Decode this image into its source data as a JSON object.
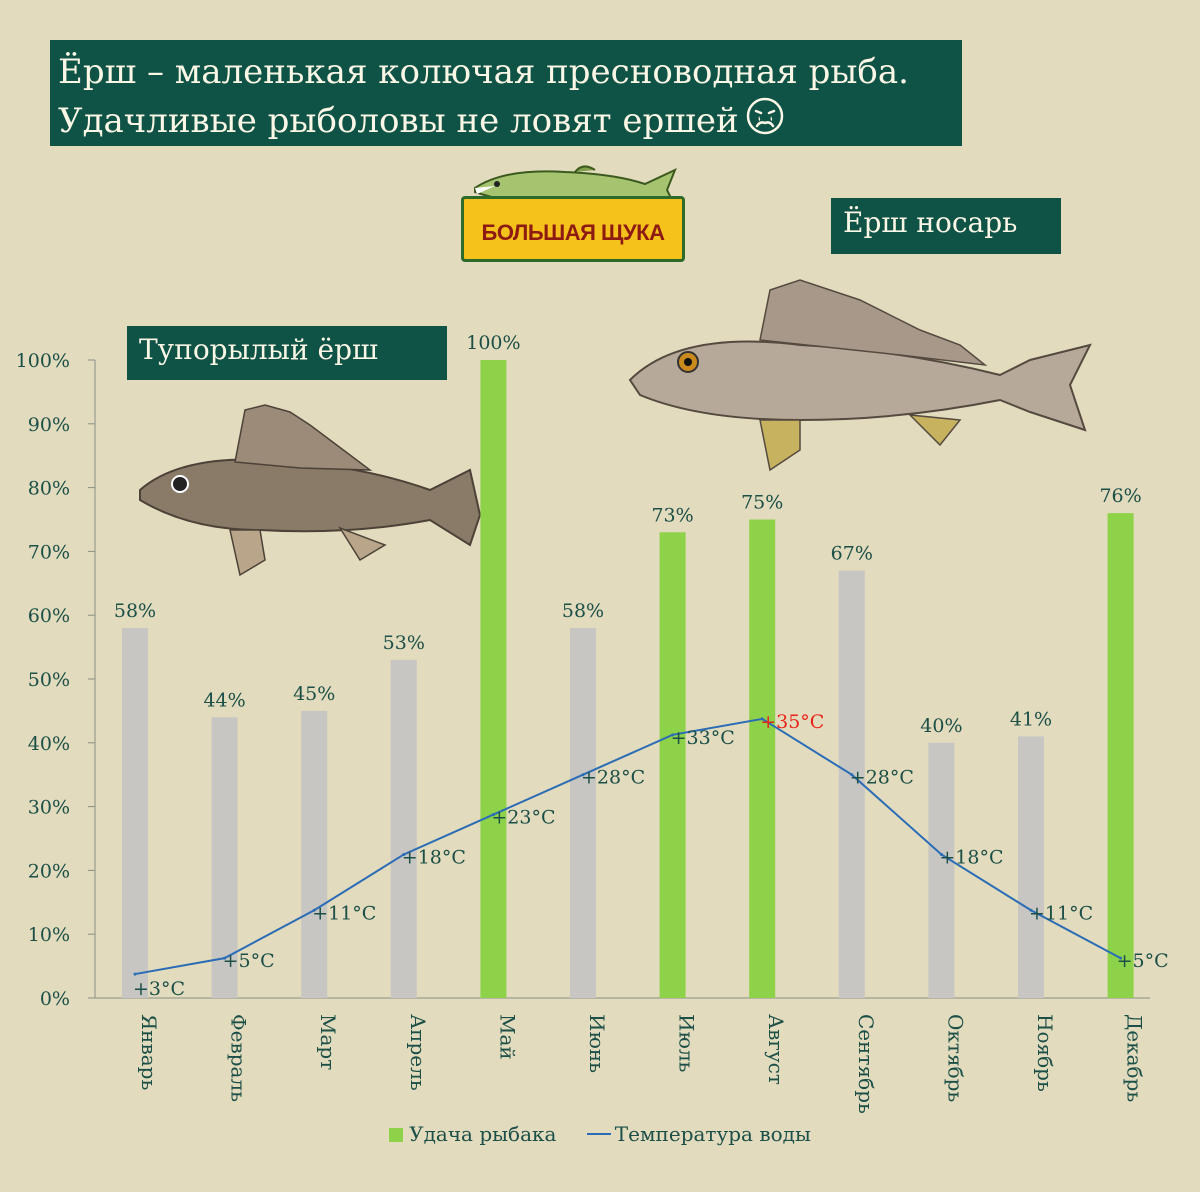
{
  "header": {
    "title_line1": "Ёрш – маленькая колючая пресноводная рыба.",
    "title_line2": "Удачливые рыболовы не ловят ершей",
    "title_icon": "sad-face-icon"
  },
  "labels": {
    "nosar": "Ёрш носарь",
    "tuporyly": "Тупорылый ёрш"
  },
  "logo": {
    "text": "БОЛЬШАЯ ЩУКА",
    "icon": "pike-fish-icon"
  },
  "illustrations": {
    "left": "ruffe-fish-icon",
    "right": "ruffe-fish-icon"
  },
  "colors": {
    "background": "#e2dbbd",
    "header_bg": "#0f5246",
    "bar_green": "#8ed24a",
    "bar_grey": "#c7c6c2",
    "temp_line": "#2a6cb6",
    "text_dark": "#1b4f47",
    "peak_label": "#e8241a"
  },
  "chart_data": {
    "type": "bar",
    "categories": [
      "Январь",
      "Февраль",
      "Март",
      "Апрель",
      "Май",
      "Июнь",
      "Июль",
      "Август",
      "Сентябрь",
      "Октябрь",
      "Ноябрь",
      "Декабрь"
    ],
    "ylim": [
      0,
      100
    ],
    "yticks": [
      0,
      10,
      20,
      30,
      40,
      50,
      60,
      70,
      80,
      90,
      100
    ],
    "ytick_labels": [
      "0%",
      "10%",
      "20%",
      "30%",
      "40%",
      "50%",
      "60%",
      "70%",
      "80%",
      "90%",
      "100%"
    ],
    "series": [
      {
        "name": "Удача рыбака",
        "kind": "bar",
        "values": [
          58,
          44,
          45,
          53,
          100,
          58,
          73,
          75,
          67,
          40,
          41,
          76
        ],
        "labels": [
          "58%",
          "44%",
          "45%",
          "53%",
          "100%",
          "58%",
          "73%",
          "75%",
          "67%",
          "40%",
          "41%",
          "76%"
        ],
        "highlight": [
          false,
          false,
          false,
          false,
          true,
          false,
          true,
          true,
          false,
          false,
          false,
          true
        ]
      },
      {
        "name": "Температура воды",
        "kind": "line",
        "values": [
          3,
          5,
          11,
          18,
          23,
          28,
          33,
          35,
          28,
          18,
          11,
          5
        ],
        "labels": [
          "+3°C",
          "+5°C",
          "+11°C",
          "+18°C",
          "+23°C",
          "+28°C",
          "+33°C",
          "+35°C",
          "+28°C",
          "+18°C",
          "+11°C",
          "+5°C"
        ],
        "peak_index": 7
      }
    ],
    "legend": "bottom"
  }
}
